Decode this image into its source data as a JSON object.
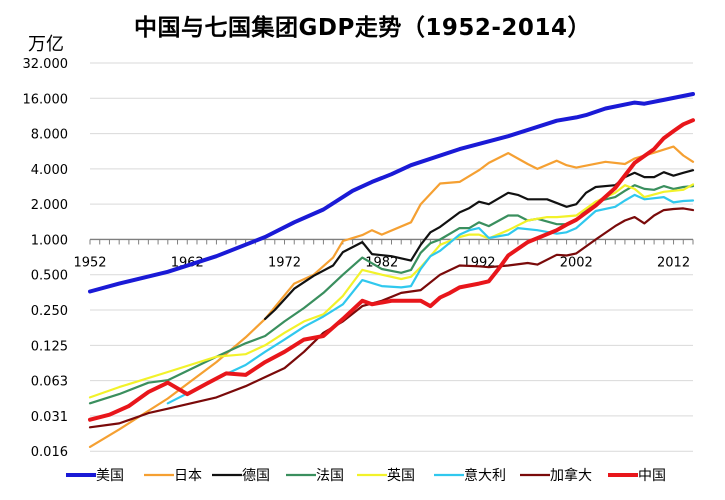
{
  "chart_data": {
    "type": "line",
    "title": "中国与七国集团GDP走势（1952-2014）",
    "unit_label": "万亿",
    "yscale": "log2",
    "ylim": [
      0.016,
      32
    ],
    "y_ticks": [
      {
        "value": 32,
        "label": "32.000"
      },
      {
        "value": 16,
        "label": "16.000"
      },
      {
        "value": 8,
        "label": "8.000"
      },
      {
        "value": 4,
        "label": "4.000"
      },
      {
        "value": 2,
        "label": "2.000"
      },
      {
        "value": 1,
        "label": "1.000"
      },
      {
        "value": 0.5,
        "label": "0.500"
      },
      {
        "value": 0.25,
        "label": "0.250"
      },
      {
        "value": 0.125,
        "label": "0.125"
      },
      {
        "value": 0.0625,
        "label": "0.063"
      },
      {
        "value": 0.03125,
        "label": "0.031"
      },
      {
        "value": 0.015625,
        "label": "0.016"
      }
    ],
    "xlim": [
      1952,
      2014
    ],
    "x_ticks": [
      {
        "value": 1952,
        "label": "1952"
      },
      {
        "value": 1962,
        "label": "1962"
      },
      {
        "value": 1972,
        "label": "1972"
      },
      {
        "value": 1982,
        "label": "1982"
      },
      {
        "value": 1992,
        "label": "1992"
      },
      {
        "value": 2002,
        "label": "2002"
      },
      {
        "value": 2012,
        "label": "2012"
      }
    ],
    "grid": "horizontal",
    "legend_position": "bottom",
    "series": [
      {
        "name": "美国",
        "color": "#1a1ad6",
        "width": 4,
        "points": [
          [
            1952,
            0.36
          ],
          [
            1955,
            0.42
          ],
          [
            1960,
            0.53
          ],
          [
            1965,
            0.72
          ],
          [
            1970,
            1.05
          ],
          [
            1973,
            1.4
          ],
          [
            1976,
            1.8
          ],
          [
            1979,
            2.6
          ],
          [
            1981,
            3.1
          ],
          [
            1983,
            3.6
          ],
          [
            1985,
            4.3
          ],
          [
            1990,
            5.9
          ],
          [
            1995,
            7.6
          ],
          [
            2000,
            10.3
          ],
          [
            2002,
            11.0
          ],
          [
            2003,
            11.5
          ],
          [
            2005,
            13.1
          ],
          [
            2008,
            14.7
          ],
          [
            2009,
            14.4
          ],
          [
            2011,
            15.5
          ],
          [
            2014,
            17.4
          ]
        ]
      },
      {
        "name": "日本",
        "color": "#f5a032",
        "width": 2.2,
        "points": [
          [
            1952,
            0.017
          ],
          [
            1955,
            0.024
          ],
          [
            1960,
            0.044
          ],
          [
            1965,
            0.09
          ],
          [
            1968,
            0.146
          ],
          [
            1970,
            0.21
          ],
          [
            1973,
            0.42
          ],
          [
            1975,
            0.5
          ],
          [
            1977,
            0.7
          ],
          [
            1978,
            0.97
          ],
          [
            1980,
            1.09
          ],
          [
            1981,
            1.2
          ],
          [
            1982,
            1.1
          ],
          [
            1985,
            1.4
          ],
          [
            1986,
            2.0
          ],
          [
            1988,
            3.0
          ],
          [
            1990,
            3.1
          ],
          [
            1992,
            3.9
          ],
          [
            1993,
            4.5
          ],
          [
            1995,
            5.45
          ],
          [
            1997,
            4.4
          ],
          [
            1998,
            4.0
          ],
          [
            2000,
            4.7
          ],
          [
            2001,
            4.3
          ],
          [
            2002,
            4.1
          ],
          [
            2005,
            4.6
          ],
          [
            2007,
            4.4
          ],
          [
            2008,
            4.9
          ],
          [
            2010,
            5.5
          ],
          [
            2012,
            6.2
          ],
          [
            2013,
            5.2
          ],
          [
            2014,
            4.6
          ]
        ]
      },
      {
        "name": "德国",
        "color": "#111111",
        "width": 2.2,
        "points": [
          [
            1970,
            0.21
          ],
          [
            1971,
            0.25
          ],
          [
            1973,
            0.38
          ],
          [
            1975,
            0.49
          ],
          [
            1977,
            0.6
          ],
          [
            1978,
            0.78
          ],
          [
            1980,
            0.95
          ],
          [
            1981,
            0.75
          ],
          [
            1983,
            0.72
          ],
          [
            1985,
            0.66
          ],
          [
            1986,
            0.9
          ],
          [
            1987,
            1.15
          ],
          [
            1988,
            1.28
          ],
          [
            1990,
            1.7
          ],
          [
            1991,
            1.85
          ],
          [
            1992,
            2.1
          ],
          [
            1993,
            2.0
          ],
          [
            1995,
            2.5
          ],
          [
            1996,
            2.4
          ],
          [
            1997,
            2.2
          ],
          [
            1998,
            2.2
          ],
          [
            1999,
            2.2
          ],
          [
            2001,
            1.9
          ],
          [
            2002,
            2.0
          ],
          [
            2003,
            2.5
          ],
          [
            2004,
            2.8
          ],
          [
            2006,
            2.9
          ],
          [
            2007,
            3.4
          ],
          [
            2008,
            3.7
          ],
          [
            2009,
            3.4
          ],
          [
            2010,
            3.4
          ],
          [
            2011,
            3.75
          ],
          [
            2012,
            3.5
          ],
          [
            2013,
            3.7
          ],
          [
            2014,
            3.9
          ]
        ]
      },
      {
        "name": "法国",
        "color": "#3a8f5e",
        "width": 2.2,
        "points": [
          [
            1952,
            0.04
          ],
          [
            1955,
            0.048
          ],
          [
            1958,
            0.06
          ],
          [
            1960,
            0.063
          ],
          [
            1965,
            0.1
          ],
          [
            1968,
            0.13
          ],
          [
            1970,
            0.15
          ],
          [
            1972,
            0.2
          ],
          [
            1974,
            0.26
          ],
          [
            1976,
            0.35
          ],
          [
            1978,
            0.5
          ],
          [
            1980,
            0.7
          ],
          [
            1982,
            0.56
          ],
          [
            1984,
            0.52
          ],
          [
            1985,
            0.55
          ],
          [
            1986,
            0.77
          ],
          [
            1987,
            0.93
          ],
          [
            1988,
            1.0
          ],
          [
            1990,
            1.25
          ],
          [
            1991,
            1.25
          ],
          [
            1992,
            1.4
          ],
          [
            1993,
            1.3
          ],
          [
            1995,
            1.6
          ],
          [
            1996,
            1.6
          ],
          [
            1997,
            1.45
          ],
          [
            1998,
            1.5
          ],
          [
            2000,
            1.35
          ],
          [
            2001,
            1.35
          ],
          [
            2002,
            1.45
          ],
          [
            2003,
            1.8
          ],
          [
            2004,
            2.1
          ],
          [
            2006,
            2.3
          ],
          [
            2007,
            2.6
          ],
          [
            2008,
            2.9
          ],
          [
            2009,
            2.7
          ],
          [
            2010,
            2.65
          ],
          [
            2011,
            2.85
          ],
          [
            2012,
            2.7
          ],
          [
            2013,
            2.8
          ],
          [
            2014,
            2.85
          ]
        ]
      },
      {
        "name": "英国",
        "color": "#f2f22a",
        "width": 2.2,
        "points": [
          [
            1952,
            0.045
          ],
          [
            1955,
            0.055
          ],
          [
            1960,
            0.074
          ],
          [
            1965,
            0.1
          ],
          [
            1968,
            0.105
          ],
          [
            1970,
            0.125
          ],
          [
            1972,
            0.16
          ],
          [
            1974,
            0.2
          ],
          [
            1976,
            0.23
          ],
          [
            1978,
            0.33
          ],
          [
            1980,
            0.55
          ],
          [
            1982,
            0.5
          ],
          [
            1984,
            0.46
          ],
          [
            1985,
            0.48
          ],
          [
            1986,
            0.58
          ],
          [
            1987,
            0.72
          ],
          [
            1988,
            0.9
          ],
          [
            1990,
            1.05
          ],
          [
            1991,
            1.1
          ],
          [
            1992,
            1.1
          ],
          [
            1993,
            1.02
          ],
          [
            1995,
            1.2
          ],
          [
            1997,
            1.45
          ],
          [
            1999,
            1.55
          ],
          [
            2000,
            1.55
          ],
          [
            2002,
            1.6
          ],
          [
            2004,
            2.1
          ],
          [
            2006,
            2.5
          ],
          [
            2007,
            2.9
          ],
          [
            2008,
            2.7
          ],
          [
            2009,
            2.3
          ],
          [
            2011,
            2.55
          ],
          [
            2012,
            2.6
          ],
          [
            2013,
            2.65
          ],
          [
            2014,
            2.95
          ]
        ]
      },
      {
        "name": "意大利",
        "color": "#30c8ee",
        "width": 2.2,
        "points": [
          [
            1960,
            0.04
          ],
          [
            1965,
            0.065
          ],
          [
            1968,
            0.085
          ],
          [
            1970,
            0.11
          ],
          [
            1972,
            0.14
          ],
          [
            1974,
            0.18
          ],
          [
            1976,
            0.22
          ],
          [
            1978,
            0.28
          ],
          [
            1980,
            0.45
          ],
          [
            1982,
            0.4
          ],
          [
            1984,
            0.39
          ],
          [
            1985,
            0.4
          ],
          [
            1986,
            0.56
          ],
          [
            1987,
            0.72
          ],
          [
            1988,
            0.8
          ],
          [
            1990,
            1.1
          ],
          [
            1991,
            1.2
          ],
          [
            1992,
            1.25
          ],
          [
            1993,
            1.03
          ],
          [
            1995,
            1.1
          ],
          [
            1996,
            1.25
          ],
          [
            1998,
            1.2
          ],
          [
            2000,
            1.12
          ],
          [
            2001,
            1.15
          ],
          [
            2002,
            1.25
          ],
          [
            2004,
            1.75
          ],
          [
            2006,
            1.9
          ],
          [
            2007,
            2.15
          ],
          [
            2008,
            2.4
          ],
          [
            2009,
            2.2
          ],
          [
            2011,
            2.3
          ],
          [
            2012,
            2.07
          ],
          [
            2013,
            2.13
          ],
          [
            2014,
            2.15
          ]
        ]
      },
      {
        "name": "加拿大",
        "color": "#7a0a0a",
        "width": 2.2,
        "points": [
          [
            1952,
            0.025
          ],
          [
            1955,
            0.027
          ],
          [
            1958,
            0.033
          ],
          [
            1960,
            0.036
          ],
          [
            1965,
            0.045
          ],
          [
            1968,
            0.056
          ],
          [
            1970,
            0.067
          ],
          [
            1972,
            0.08
          ],
          [
            1974,
            0.11
          ],
          [
            1976,
            0.16
          ],
          [
            1978,
            0.2
          ],
          [
            1980,
            0.27
          ],
          [
            1982,
            0.3
          ],
          [
            1984,
            0.35
          ],
          [
            1986,
            0.37
          ],
          [
            1988,
            0.5
          ],
          [
            1990,
            0.6
          ],
          [
            1992,
            0.59
          ],
          [
            1993,
            0.58
          ],
          [
            1995,
            0.6
          ],
          [
            1997,
            0.63
          ],
          [
            1998,
            0.61
          ],
          [
            2000,
            0.74
          ],
          [
            2001,
            0.73
          ],
          [
            2002,
            0.76
          ],
          [
            2004,
            1.0
          ],
          [
            2006,
            1.3
          ],
          [
            2007,
            1.45
          ],
          [
            2008,
            1.55
          ],
          [
            2009,
            1.37
          ],
          [
            2010,
            1.6
          ],
          [
            2011,
            1.78
          ],
          [
            2012,
            1.82
          ],
          [
            2013,
            1.84
          ],
          [
            2014,
            1.78
          ]
        ]
      },
      {
        "name": "中国",
        "color": "#e8161b",
        "width": 4,
        "points": [
          [
            1952,
            0.029
          ],
          [
            1954,
            0.032
          ],
          [
            1956,
            0.038
          ],
          [
            1958,
            0.05
          ],
          [
            1960,
            0.06
          ],
          [
            1962,
            0.048
          ],
          [
            1964,
            0.059
          ],
          [
            1966,
            0.072
          ],
          [
            1968,
            0.07
          ],
          [
            1970,
            0.09
          ],
          [
            1972,
            0.11
          ],
          [
            1974,
            0.14
          ],
          [
            1976,
            0.15
          ],
          [
            1978,
            0.21
          ],
          [
            1980,
            0.3
          ],
          [
            1981,
            0.28
          ],
          [
            1983,
            0.3
          ],
          [
            1986,
            0.3
          ],
          [
            1987,
            0.27
          ],
          [
            1988,
            0.32
          ],
          [
            1989,
            0.35
          ],
          [
            1990,
            0.39
          ],
          [
            1992,
            0.42
          ],
          [
            1993,
            0.44
          ],
          [
            1994,
            0.56
          ],
          [
            1995,
            0.73
          ],
          [
            1997,
            0.95
          ],
          [
            2000,
            1.2
          ],
          [
            2001,
            1.34
          ],
          [
            2002,
            1.47
          ],
          [
            2004,
            1.95
          ],
          [
            2006,
            2.75
          ],
          [
            2008,
            4.5
          ],
          [
            2010,
            5.9
          ],
          [
            2011,
            7.3
          ],
          [
            2012,
            8.4
          ],
          [
            2013,
            9.6
          ],
          [
            2014,
            10.4
          ]
        ]
      }
    ]
  }
}
